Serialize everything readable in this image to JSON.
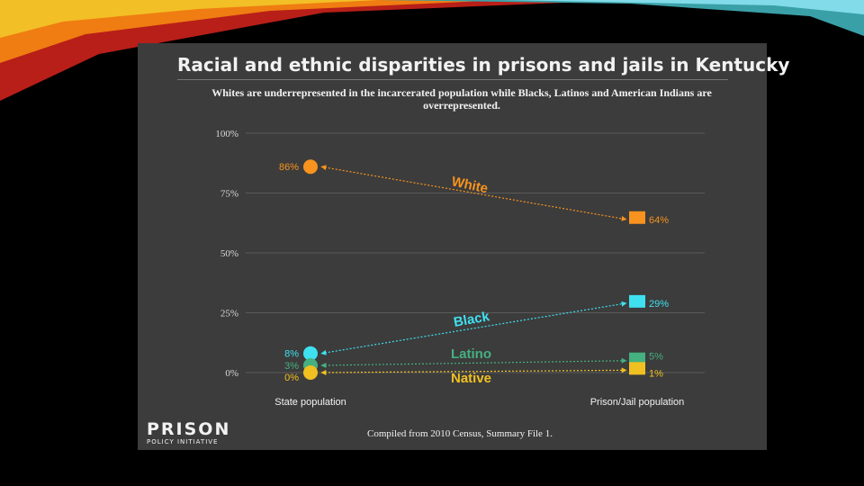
{
  "slide": {
    "accent_colors": [
      "#e8b520",
      "#f07a10",
      "#c0201a",
      "#3aa0a8",
      "#7fd8e8"
    ]
  },
  "branding": {
    "logo_main": "PRISON",
    "logo_sub": "POLICY INITIATIVE"
  },
  "source_note": "Compiled from 2010 Census, Summary File 1.",
  "chart_data": {
    "type": "slope",
    "title": "Racial and ethnic disparities in prisons and jails in Kentucky",
    "subtitle": "Whites are underrepresented in the incarcerated population while Blacks, Latinos and American Indians are overrepresented.",
    "categories": [
      "State population",
      "Prison/Jail population"
    ],
    "ylim": [
      0,
      100
    ],
    "yticks": [
      "100%",
      "75%",
      "50%",
      "25%",
      "0%"
    ],
    "ytick_values": [
      100,
      75,
      50,
      25,
      0
    ],
    "series": [
      {
        "name": "White",
        "color": "#f7931e",
        "values": [
          86,
          64
        ],
        "labels": [
          "86%",
          "64%"
        ]
      },
      {
        "name": "Black",
        "color": "#3fe0f0",
        "values": [
          8,
          29
        ],
        "labels": [
          "8%",
          "29%"
        ]
      },
      {
        "name": "Latino",
        "color": "#45b080",
        "values": [
          3,
          5
        ],
        "labels": [
          "3%",
          "5%"
        ]
      },
      {
        "name": "Native",
        "color": "#f0c020",
        "values": [
          0,
          1
        ],
        "labels": [
          "0%",
          "1%"
        ]
      }
    ]
  }
}
